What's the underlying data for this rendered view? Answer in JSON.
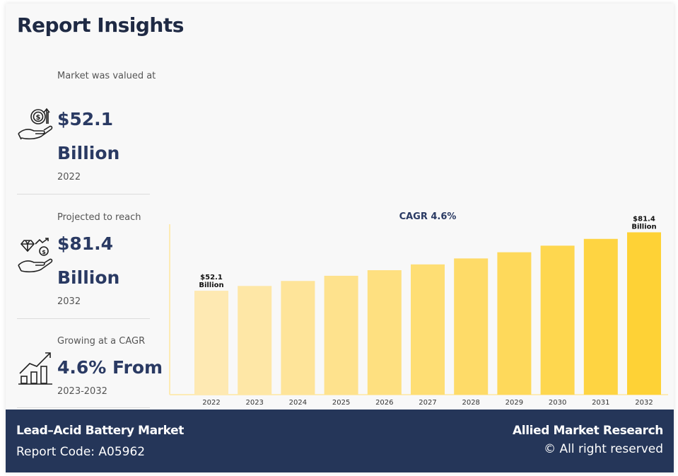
{
  "header": {
    "title": "Report Insights"
  },
  "stats": [
    {
      "icon": "money-hand-growth-icon",
      "label": "Market was valued at",
      "value": "$52.1",
      "unit": "Billion",
      "year": "2022"
    },
    {
      "icon": "diamond-coin-hand-icon",
      "label": "Projected to reach",
      "value": "$81.4",
      "unit": "Billion",
      "year": "2032"
    },
    {
      "icon": "growth-chart-icon",
      "label": "Growing at a CAGR",
      "value": "4.6% From",
      "year": "2023-2032"
    }
  ],
  "colors": {
    "title": "#1f2a44",
    "accent": "#2a3a63",
    "footer_bg": "#253659",
    "bar_start": "#fee9b2",
    "bar_end": "#fed236"
  },
  "chart_data": {
    "type": "bar",
    "title": "CAGR 4.6%",
    "xlabel": "",
    "ylabel": "",
    "categories": [
      "2022",
      "2023",
      "2024",
      "2025",
      "2026",
      "2027",
      "2028",
      "2029",
      "2030",
      "2031",
      "2032"
    ],
    "values": [
      52.1,
      54.5,
      57.0,
      59.6,
      62.4,
      65.3,
      68.3,
      71.4,
      74.7,
      78.1,
      81.4
    ],
    "unit": "USD Billion",
    "ylim": [
      0,
      86
    ],
    "grid": false,
    "data_labels": [
      {
        "index": 0,
        "line1": "$52.1",
        "line2": "Billion"
      },
      {
        "index": 10,
        "line1": "$81.4",
        "line2": "Billion"
      }
    ]
  },
  "footer": {
    "report_name": "Lead–Acid Battery Market",
    "report_code": "Report Code: A05962",
    "brand": "Allied Market Research",
    "rights": "© All right reserved"
  }
}
